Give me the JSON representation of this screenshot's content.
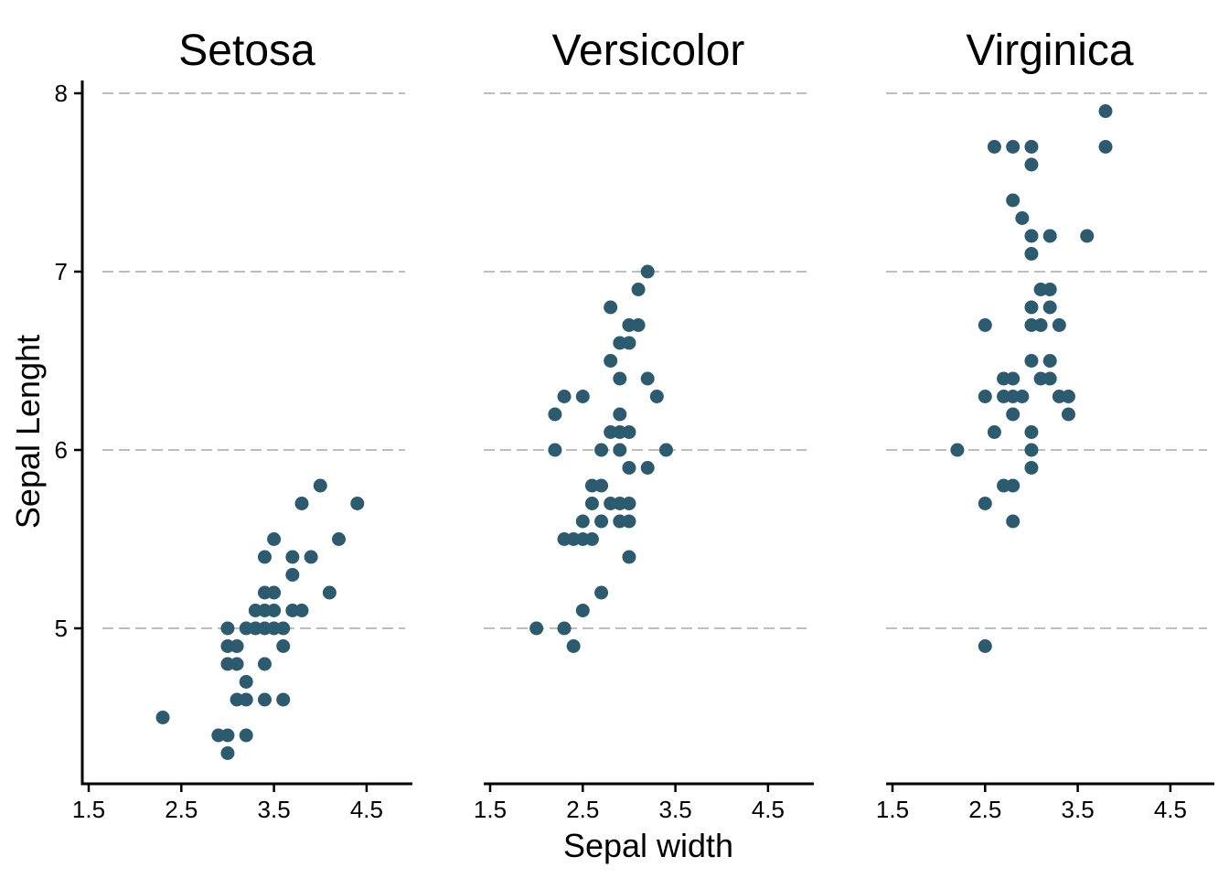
{
  "chart_data": {
    "type": "scatter",
    "xlabel": "Sepal width",
    "ylabel": "Sepal Lenght",
    "xlim": [
      1.5,
      5.0
    ],
    "ylim": [
      4.2,
      8.1
    ],
    "xticks": [
      "1.5",
      "2.5",
      "3.5",
      "4.5"
    ],
    "yticks": [
      "5",
      "6",
      "7",
      "8"
    ],
    "grid": "horizontal dashed",
    "point_color": "#2c5a6e",
    "panels": [
      {
        "title": "Setosa",
        "points": [
          [
            2.3,
            4.5
          ],
          [
            2.9,
            4.4
          ],
          [
            3.0,
            4.4
          ],
          [
            3.2,
            4.4
          ],
          [
            3.0,
            4.3
          ],
          [
            3.0,
            5.0
          ],
          [
            3.0,
            4.9
          ],
          [
            3.1,
            4.9
          ],
          [
            3.0,
            4.8
          ],
          [
            3.1,
            4.8
          ],
          [
            3.2,
            4.7
          ],
          [
            3.1,
            4.6
          ],
          [
            3.2,
            4.6
          ],
          [
            3.2,
            5.0
          ],
          [
            3.3,
            5.0
          ],
          [
            3.3,
            5.1
          ],
          [
            3.4,
            5.0
          ],
          [
            3.4,
            5.1
          ],
          [
            3.4,
            5.2
          ],
          [
            3.4,
            5.4
          ],
          [
            3.4,
            4.8
          ],
          [
            3.4,
            4.6
          ],
          [
            3.5,
            5.0
          ],
          [
            3.5,
            5.1
          ],
          [
            3.5,
            5.2
          ],
          [
            3.5,
            5.5
          ],
          [
            3.6,
            5.0
          ],
          [
            3.6,
            4.9
          ],
          [
            3.6,
            4.6
          ],
          [
            3.7,
            5.3
          ],
          [
            3.7,
            5.4
          ],
          [
            3.7,
            5.1
          ],
          [
            3.8,
            5.1
          ],
          [
            3.8,
            5.7
          ],
          [
            3.9,
            5.4
          ],
          [
            4.0,
            5.8
          ],
          [
            4.1,
            5.2
          ],
          [
            4.2,
            5.5
          ],
          [
            4.4,
            5.7
          ]
        ]
      },
      {
        "title": "Versicolor",
        "points": [
          [
            2.0,
            5.0
          ],
          [
            2.2,
            6.0
          ],
          [
            2.2,
            6.2
          ],
          [
            2.3,
            6.3
          ],
          [
            2.3,
            5.5
          ],
          [
            2.3,
            5.0
          ],
          [
            2.4,
            5.5
          ],
          [
            2.4,
            4.9
          ],
          [
            2.5,
            6.3
          ],
          [
            2.5,
            5.5
          ],
          [
            2.5,
            5.6
          ],
          [
            2.5,
            5.1
          ],
          [
            2.6,
            5.5
          ],
          [
            2.6,
            5.7
          ],
          [
            2.6,
            5.8
          ],
          [
            2.7,
            6.0
          ],
          [
            2.7,
            5.8
          ],
          [
            2.7,
            5.6
          ],
          [
            2.7,
            5.2
          ],
          [
            2.8,
            6.8
          ],
          [
            2.8,
            6.5
          ],
          [
            2.8,
            6.1
          ],
          [
            2.8,
            5.7
          ],
          [
            2.9,
            6.6
          ],
          [
            2.9,
            6.4
          ],
          [
            2.9,
            6.2
          ],
          [
            2.9,
            6.1
          ],
          [
            2.9,
            6.0
          ],
          [
            2.9,
            5.7
          ],
          [
            2.9,
            5.6
          ],
          [
            3.0,
            6.7
          ],
          [
            3.0,
            6.6
          ],
          [
            3.0,
            6.1
          ],
          [
            3.0,
            5.9
          ],
          [
            3.0,
            5.7
          ],
          [
            3.0,
            5.6
          ],
          [
            3.0,
            5.4
          ],
          [
            3.1,
            6.9
          ],
          [
            3.1,
            6.7
          ],
          [
            3.2,
            7.0
          ],
          [
            3.2,
            6.4
          ],
          [
            3.2,
            5.9
          ],
          [
            3.3,
            6.3
          ],
          [
            3.4,
            6.0
          ]
        ]
      },
      {
        "title": "Virginica",
        "points": [
          [
            2.2,
            6.0
          ],
          [
            2.5,
            6.7
          ],
          [
            2.5,
            6.3
          ],
          [
            2.5,
            5.7
          ],
          [
            2.5,
            4.9
          ],
          [
            2.6,
            7.7
          ],
          [
            2.6,
            6.1
          ],
          [
            2.7,
            6.4
          ],
          [
            2.7,
            6.3
          ],
          [
            2.7,
            5.8
          ],
          [
            2.8,
            7.7
          ],
          [
            2.8,
            7.4
          ],
          [
            2.8,
            6.4
          ],
          [
            2.8,
            6.3
          ],
          [
            2.8,
            6.2
          ],
          [
            2.8,
            5.8
          ],
          [
            2.8,
            5.6
          ],
          [
            2.9,
            7.3
          ],
          [
            2.9,
            6.3
          ],
          [
            3.0,
            7.7
          ],
          [
            3.0,
            7.6
          ],
          [
            3.0,
            7.2
          ],
          [
            3.0,
            7.1
          ],
          [
            3.0,
            6.8
          ],
          [
            3.0,
            6.7
          ],
          [
            3.0,
            6.5
          ],
          [
            3.0,
            6.1
          ],
          [
            3.0,
            6.0
          ],
          [
            3.0,
            5.9
          ],
          [
            3.1,
            6.9
          ],
          [
            3.1,
            6.7
          ],
          [
            3.1,
            6.4
          ],
          [
            3.2,
            7.2
          ],
          [
            3.2,
            6.9
          ],
          [
            3.2,
            6.8
          ],
          [
            3.2,
            6.5
          ],
          [
            3.2,
            6.4
          ],
          [
            3.3,
            6.7
          ],
          [
            3.3,
            6.3
          ],
          [
            3.4,
            6.3
          ],
          [
            3.4,
            6.2
          ],
          [
            3.6,
            7.2
          ],
          [
            3.8,
            7.9
          ],
          [
            3.8,
            7.7
          ]
        ]
      }
    ]
  }
}
